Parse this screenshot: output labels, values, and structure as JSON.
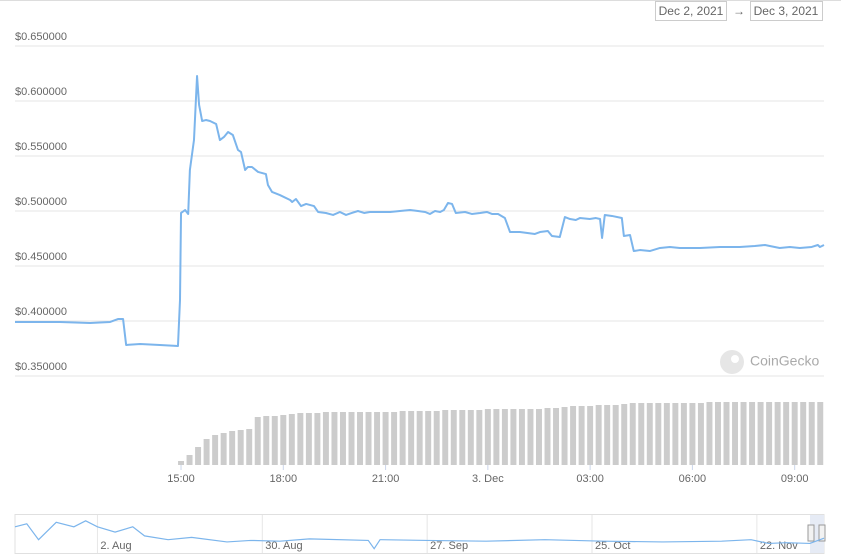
{
  "date_range": {
    "from": "Dec 2, 2021",
    "separator": "→",
    "to": "Dec 3, 2021"
  },
  "watermark": "CoinGecko",
  "chart_data": {
    "type": "line",
    "x": [
      10.13,
      11.45,
      12.33,
      12.92,
      13.15,
      13.3,
      13.39,
      13.8,
      14.38,
      14.91,
      14.97,
      15.0,
      15.12,
      15.21,
      15.26,
      15.38,
      15.47,
      15.53,
      15.62,
      15.73,
      15.85,
      16.03,
      16.14,
      16.26,
      16.38,
      16.52,
      16.67,
      16.76,
      16.88,
      16.96,
      17.08,
      17.26,
      17.49,
      17.55,
      17.67,
      17.9,
      18.2,
      18.26,
      18.37,
      18.52,
      18.67,
      18.9,
      19.02,
      19.25,
      19.46,
      19.66,
      19.84,
      20.01,
      20.19,
      20.37,
      20.54,
      20.84,
      21.13,
      21.42,
      21.72,
      21.95,
      22.16,
      22.3,
      22.45,
      22.6,
      22.71,
      22.83,
      22.95,
      23.06,
      23.33,
      23.53,
      23.77,
      23.97,
      24.12,
      24.3,
      24.5,
      24.65,
      24.94,
      25.38,
      25.53,
      25.76,
      25.88,
      26.11,
      26.26,
      26.41,
      26.58,
      26.7,
      26.99,
      27.17,
      27.29,
      27.35,
      27.43,
      27.64,
      27.93,
      27.99,
      28.17,
      28.28,
      28.46,
      28.75,
      29.05,
      29.34,
      29.63,
      30.22,
      30.81,
      31.39,
      31.83,
      32.13,
      32.27,
      32.56,
      32.86,
      33.15,
      33.5,
      33.68,
      33.74,
      33.86
    ],
    "series": [
      {
        "color": "#7cb5ec",
        "values": [
          0.3991,
          0.3991,
          0.3982,
          0.3991,
          0.4018,
          0.4018,
          0.3782,
          0.3791,
          0.3782,
          0.3773,
          0.4191,
          0.4982,
          0.5009,
          0.4973,
          0.5373,
          0.5645,
          0.6227,
          0.5964,
          0.5818,
          0.5827,
          0.5818,
          0.5791,
          0.5645,
          0.5673,
          0.5718,
          0.5691,
          0.5555,
          0.5536,
          0.5373,
          0.54,
          0.54,
          0.5355,
          0.5336,
          0.5236,
          0.5173,
          0.5145,
          0.51,
          0.5082,
          0.5109,
          0.5045,
          0.5064,
          0.5045,
          0.4991,
          0.4982,
          0.4964,
          0.4991,
          0.4964,
          0.4982,
          0.5,
          0.4982,
          0.4991,
          0.4991,
          0.4991,
          0.5,
          0.5009,
          0.5,
          0.4991,
          0.4973,
          0.5,
          0.4991,
          0.5009,
          0.5073,
          0.5064,
          0.4982,
          0.4991,
          0.4973,
          0.4982,
          0.4991,
          0.4973,
          0.4973,
          0.4936,
          0.4809,
          0.4809,
          0.4791,
          0.4809,
          0.4818,
          0.4773,
          0.4764,
          0.4945,
          0.4927,
          0.4918,
          0.4936,
          0.4927,
          0.4936,
          0.4927,
          0.4755,
          0.4964,
          0.4955,
          0.4936,
          0.4773,
          0.4782,
          0.4636,
          0.4645,
          0.4636,
          0.4664,
          0.4673,
          0.4664,
          0.4664,
          0.4673,
          0.4673,
          0.4682,
          0.4691,
          0.4682,
          0.4664,
          0.4673,
          0.4664,
          0.4673,
          0.4691,
          0.4673,
          0.4691
        ]
      }
    ],
    "xlim": [
      10.13,
      33.86
    ],
    "xticks": [
      {
        "value": 15,
        "label": "15:00"
      },
      {
        "value": 18,
        "label": "18:00"
      },
      {
        "value": 21,
        "label": "21:00"
      },
      {
        "value": 24,
        "label": "3. Dec"
      },
      {
        "value": 27,
        "label": "03:00"
      },
      {
        "value": 30,
        "label": "06:00"
      },
      {
        "value": 33,
        "label": "09:00"
      }
    ],
    "ylim": [
      0.34,
      0.66
    ],
    "yticks": [
      {
        "value": 0.35,
        "label": "$0.350000"
      },
      {
        "value": 0.4,
        "label": "$0.400000"
      },
      {
        "value": 0.45,
        "label": "$0.450000"
      },
      {
        "value": 0.5,
        "label": "$0.500000"
      },
      {
        "value": 0.55,
        "label": "$0.550000"
      },
      {
        "value": 0.6,
        "label": "$0.600000"
      },
      {
        "value": 0.65,
        "label": "$0.650000"
      }
    ],
    "grid": true,
    "volume": {
      "type": "bar",
      "color": "#cccccc",
      "y2lim": [
        0,
        70
      ],
      "x": [
        15.0,
        15.25,
        15.5,
        15.75,
        16.0,
        16.25,
        16.5,
        16.75,
        17.0,
        17.25,
        17.5,
        17.75,
        18.0,
        18.25,
        18.5,
        18.75,
        19.0,
        19.25,
        19.5,
        19.75,
        20.0,
        20.25,
        20.5,
        20.75,
        21.0,
        21.25,
        21.5,
        21.75,
        22.0,
        22.25,
        22.5,
        22.75,
        23.0,
        23.25,
        23.5,
        23.75,
        24.0,
        24.25,
        24.5,
        24.75,
        25.0,
        25.25,
        25.5,
        25.75,
        26.0,
        26.25,
        26.5,
        26.75,
        27.0,
        27.25,
        27.5,
        27.75,
        28.0,
        28.25,
        28.5,
        28.75,
        29.0,
        29.25,
        29.5,
        29.75,
        30.0,
        30.25,
        30.5,
        30.75,
        31.0,
        31.25,
        31.5,
        31.75,
        32.0,
        32.25,
        32.5,
        32.75,
        33.0,
        33.25,
        33.5,
        33.75
      ],
      "values": [
        4,
        10,
        18,
        26,
        30,
        32,
        34,
        35,
        36,
        48,
        49,
        49,
        50,
        51,
        52,
        52,
        52,
        53,
        53,
        53,
        53,
        53,
        53,
        53,
        53,
        53,
        54,
        54,
        54,
        54,
        54,
        55,
        55,
        55,
        55,
        55,
        56,
        56,
        56,
        56,
        56,
        56,
        56,
        57,
        57,
        58,
        59,
        59,
        59,
        60,
        60,
        60,
        61,
        62,
        62,
        62,
        62,
        62,
        62,
        62,
        62,
        62,
        63,
        63,
        63,
        63,
        63,
        63,
        63,
        63,
        63,
        63,
        63,
        63,
        63,
        63
      ]
    },
    "navigator": {
      "type": "line",
      "color": "#7cb5ec",
      "x": [
        0,
        2,
        4,
        7,
        10,
        12,
        14,
        17,
        20,
        22,
        26,
        30,
        36,
        40,
        45,
        50,
        60,
        61,
        62,
        70,
        80,
        90,
        100,
        110,
        120,
        125,
        128,
        131,
        135,
        137.4
      ],
      "values": [
        0.62,
        0.66,
        0.45,
        0.68,
        0.62,
        0.7,
        0.62,
        0.55,
        0.62,
        0.5,
        0.45,
        0.48,
        0.42,
        0.44,
        0.43,
        0.46,
        0.44,
        0.33,
        0.45,
        0.44,
        0.43,
        0.45,
        0.43,
        0.42,
        0.43,
        0.45,
        0.4,
        0.41,
        0.4,
        0.47
      ],
      "xlim": [
        0,
        137.4
      ],
      "ylim": [
        0.3,
        0.75
      ],
      "xticks": [
        {
          "value": 14,
          "label": "2. Aug"
        },
        {
          "value": 42,
          "label": "30. Aug"
        },
        {
          "value": 70,
          "label": "27. Sep"
        },
        {
          "value": 98,
          "label": "25. Oct"
        },
        {
          "value": 126,
          "label": "22. Nov"
        }
      ]
    }
  }
}
